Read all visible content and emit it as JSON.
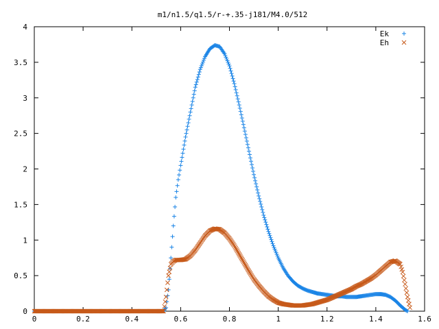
{
  "chart_data": {
    "type": "scatter",
    "title": "m1/n1.5/q1.5/r-+.35-j181/M4.0/512",
    "xlabel": "",
    "ylabel": "",
    "xlim": [
      0,
      1.6
    ],
    "ylim": [
      0,
      4
    ],
    "x_ticks": [
      "0",
      "0.2",
      "0.4",
      "0.6",
      "0.8",
      "1",
      "1.2",
      "1.4",
      "1.6"
    ],
    "y_ticks": [
      "0",
      "0.5",
      "1",
      "1.5",
      "2",
      "2.5",
      "3",
      "3.5",
      "4"
    ],
    "legend_position": "top-right",
    "grid": false,
    "series": [
      {
        "name": "Ek",
        "marker": "plus",
        "color": "#1a84e6",
        "x": [
          0.0,
          0.1,
          0.2,
          0.3,
          0.4,
          0.5,
          0.53,
          0.54,
          0.55,
          0.56,
          0.57,
          0.58,
          0.59,
          0.6,
          0.62,
          0.64,
          0.66,
          0.68,
          0.7,
          0.72,
          0.74,
          0.76,
          0.78,
          0.8,
          0.82,
          0.84,
          0.86,
          0.88,
          0.9,
          0.92,
          0.94,
          0.96,
          0.98,
          1.0,
          1.02,
          1.04,
          1.06,
          1.08,
          1.1,
          1.12,
          1.14,
          1.16,
          1.18,
          1.2,
          1.22,
          1.24,
          1.26,
          1.28,
          1.3,
          1.32,
          1.34,
          1.36,
          1.38,
          1.4,
          1.42,
          1.44,
          1.46,
          1.48,
          1.5,
          1.52,
          1.53
        ],
        "y": [
          0,
          0,
          0,
          0,
          0,
          0,
          0,
          0.05,
          0.3,
          0.75,
          1.2,
          1.6,
          1.85,
          2.05,
          2.45,
          2.8,
          3.15,
          3.4,
          3.58,
          3.69,
          3.74,
          3.72,
          3.62,
          3.45,
          3.2,
          2.9,
          2.58,
          2.25,
          1.92,
          1.62,
          1.35,
          1.12,
          0.92,
          0.75,
          0.61,
          0.5,
          0.42,
          0.36,
          0.32,
          0.29,
          0.27,
          0.25,
          0.24,
          0.23,
          0.22,
          0.21,
          0.21,
          0.2,
          0.2,
          0.2,
          0.21,
          0.22,
          0.23,
          0.24,
          0.24,
          0.23,
          0.2,
          0.15,
          0.08,
          0.02,
          0
        ]
      },
      {
        "name": "Eh",
        "marker": "cross",
        "color": "#c75a1a",
        "x": [
          0.0,
          0.1,
          0.2,
          0.3,
          0.4,
          0.5,
          0.53,
          0.54,
          0.55,
          0.56,
          0.57,
          0.58,
          0.6,
          0.62,
          0.64,
          0.66,
          0.68,
          0.7,
          0.72,
          0.74,
          0.76,
          0.78,
          0.8,
          0.82,
          0.84,
          0.86,
          0.88,
          0.9,
          0.92,
          0.94,
          0.96,
          0.98,
          1.0,
          1.02,
          1.04,
          1.06,
          1.08,
          1.1,
          1.12,
          1.14,
          1.16,
          1.18,
          1.2,
          1.22,
          1.24,
          1.26,
          1.28,
          1.3,
          1.32,
          1.34,
          1.36,
          1.38,
          1.4,
          1.42,
          1.44,
          1.46,
          1.48,
          1.5,
          1.51,
          1.52,
          1.53,
          1.54
        ],
        "y": [
          0,
          0,
          0,
          0,
          0,
          0,
          0,
          0.2,
          0.5,
          0.66,
          0.7,
          0.72,
          0.72,
          0.73,
          0.78,
          0.86,
          0.96,
          1.06,
          1.13,
          1.16,
          1.15,
          1.1,
          1.02,
          0.92,
          0.8,
          0.68,
          0.56,
          0.45,
          0.36,
          0.28,
          0.21,
          0.16,
          0.12,
          0.1,
          0.09,
          0.08,
          0.08,
          0.08,
          0.09,
          0.1,
          0.12,
          0.14,
          0.16,
          0.19,
          0.22,
          0.25,
          0.28,
          0.31,
          0.35,
          0.38,
          0.42,
          0.46,
          0.51,
          0.57,
          0.63,
          0.69,
          0.71,
          0.66,
          0.55,
          0.38,
          0.2,
          0.05
        ]
      }
    ]
  }
}
